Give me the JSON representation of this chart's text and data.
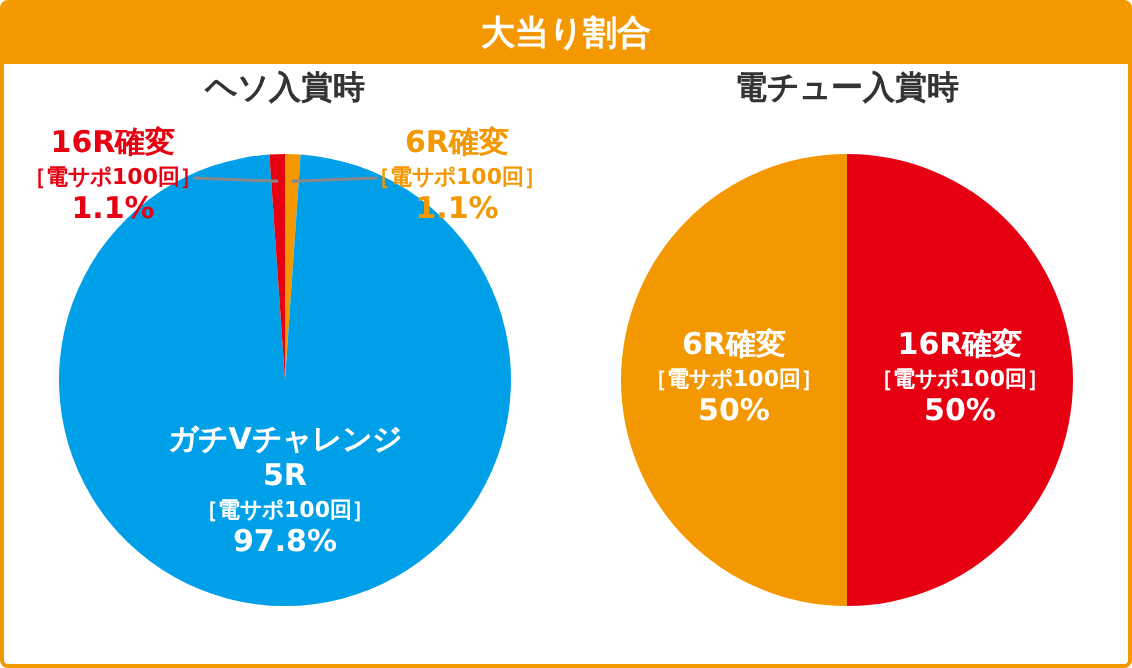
{
  "chart_data": [
    {
      "type": "pie",
      "title": "大当り割合",
      "subtitle": "ヘソ入賞時",
      "categories": [
        "6R確変［電サポ100回］",
        "ガチVチャレンジ\n5R［電サポ100回］",
        "16R確変［電サポ100回］"
      ],
      "values": [
        1.1,
        97.8,
        1.1
      ],
      "value_labels": [
        "1.1%",
        "97.8%",
        "1.1%"
      ],
      "colors": [
        "#f39800",
        "#00a0e9",
        "#e60012"
      ]
    },
    {
      "type": "pie",
      "subtitle": "電チュー入賞時",
      "categories": [
        "16R確変［電サポ100回］",
        "6R確変［電サポ100回］"
      ],
      "values": [
        50,
        50
      ],
      "value_labels": [
        "50%",
        "50%"
      ],
      "colors": [
        "#e60012",
        "#f39800"
      ]
    }
  ]
}
